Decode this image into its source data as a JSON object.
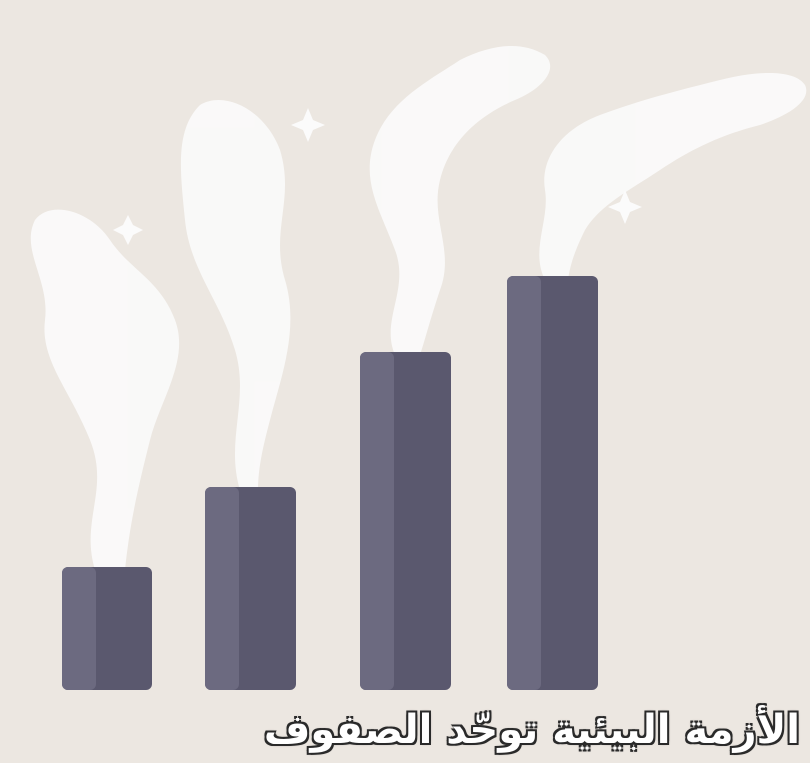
{
  "scene": {
    "background_color": "#ece7e1",
    "chimney_color": "#5a586e",
    "chimney_highlight_color": "#6c6a80",
    "smoke_color": "#fbfbfb",
    "chimney_count": 4,
    "chimney_levels": [
      1,
      2,
      3,
      4
    ]
  },
  "caption": {
    "text": "الأزمة البيئية توحّد الصفوف"
  }
}
